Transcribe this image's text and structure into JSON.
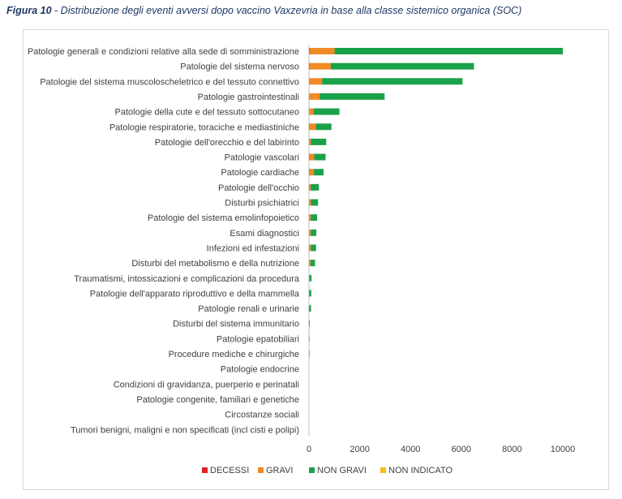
{
  "caption": {
    "figure_label": "Figura 10",
    "text": " - Distribuzione degli eventi avversi dopo vaccino Vaxzevria in base alla classe sistemico organica (SOC)"
  },
  "colors": {
    "DECESSI": "#e02424",
    "GRAVI": "#f08a24",
    "NON GRAVI": "#1aa24a",
    "NON INDICATO": "#f6bd16",
    "tick_text": "#404040",
    "caption": "#1f3864"
  },
  "chart_data": {
    "type": "bar",
    "orientation": "horizontal",
    "stacked": true,
    "title": "",
    "xlabel": "",
    "ylabel": "",
    "xlim": [
      0,
      10000
    ],
    "xticks": [
      0,
      2000,
      4000,
      6000,
      8000,
      10000
    ],
    "grid": false,
    "legend_position": "bottom",
    "categories": [
      "Patologie generali e condizioni relative alla sede di somministrazione",
      "Patologie del sistema nervoso",
      "Patologie del sistema muscoloscheletrico e del tessuto connettivo",
      "Patologie gastrointestinali",
      "Patologie della cute e del tessuto sottocutaneo",
      "Patologie respiratorie, toraciche e mediastiniche",
      "Patologie dell'orecchio e del labirinto",
      "Patologie vascolari",
      "Patologie cardiache",
      "Patologie dell'occhio",
      "Disturbi psichiatrici",
      "Patologie del sistema emolinfopoietico",
      "Esami diagnostici",
      "Infezioni ed infestazioni",
      "Disturbi del metabolismo e della nutrizione",
      "Traumatismi, intossicazioni e complicazioni da procedura",
      "Patologie dell'apparato riproduttivo e della mammella",
      "Patologie renali e urinarie",
      "Disturbi del sistema immunitario",
      "Patologie epatobiliari",
      "Procedure mediche e chirurgiche",
      "Patologie endocrine",
      "Condizioni di gravidanza, puerperio e perinatali",
      "Patologie congenite, familiari e genetiche",
      "Circostanze sociali",
      "Tumori benigni, maligni e non specificati (incl cisti e polipi)"
    ],
    "series": [
      {
        "name": "DECESSI",
        "values": [
          10,
          10,
          0,
          0,
          0,
          5,
          0,
          5,
          5,
          0,
          0,
          0,
          0,
          0,
          0,
          0,
          0,
          0,
          0,
          0,
          0,
          0,
          0,
          0,
          0,
          0
        ]
      },
      {
        "name": "GRAVI",
        "values": [
          1000,
          850,
          520,
          420,
          180,
          260,
          80,
          200,
          190,
          70,
          80,
          70,
          70,
          70,
          60,
          20,
          10,
          10,
          10,
          0,
          0,
          0,
          0,
          0,
          0,
          0
        ]
      },
      {
        "name": "NON GRAVI",
        "values": [
          8990,
          5640,
          5530,
          2560,
          1020,
          620,
          600,
          450,
          380,
          320,
          280,
          250,
          220,
          210,
          180,
          80,
          80,
          70,
          20,
          5,
          5,
          0,
          0,
          0,
          0,
          0
        ]
      },
      {
        "name": "NON INDICATO",
        "values": [
          0,
          0,
          0,
          0,
          0,
          0,
          0,
          0,
          0,
          0,
          0,
          0,
          0,
          0,
          0,
          0,
          0,
          0,
          0,
          0,
          0,
          0,
          0,
          0,
          0,
          0
        ]
      }
    ]
  }
}
